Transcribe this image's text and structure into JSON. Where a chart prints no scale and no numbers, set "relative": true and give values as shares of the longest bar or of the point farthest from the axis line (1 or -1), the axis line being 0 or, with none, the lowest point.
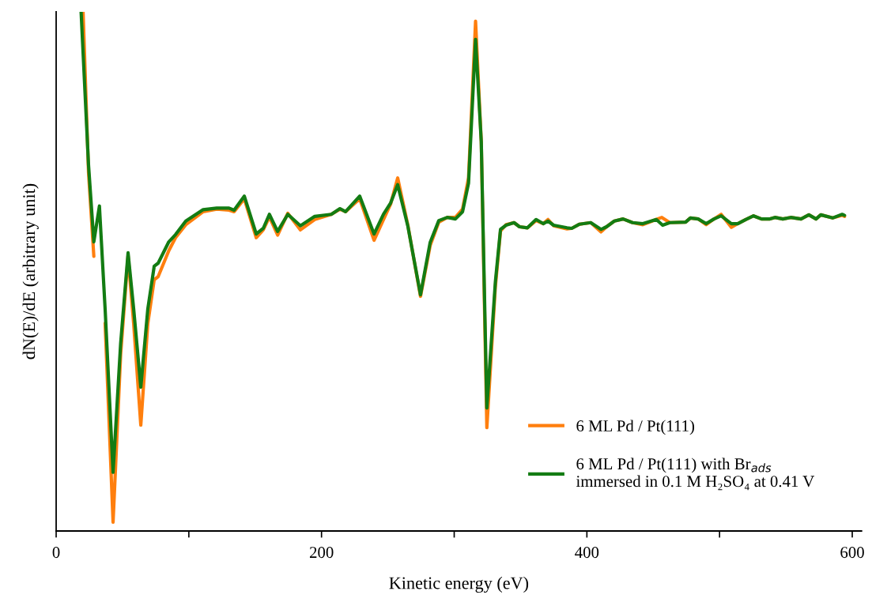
{
  "chart_data": {
    "type": "line",
    "relative": true,
    "xlabel": "Kinetic energy (eV)",
    "ylabel": "dN(E)/dE (arbitrary unit)",
    "xlim": [
      0,
      607
    ],
    "xticks": [
      0,
      {
        "value": 100,
        "label": null
      },
      200,
      {
        "value": 300,
        "label": null
      },
      400,
      {
        "value": 500,
        "label": null
      },
      600
    ],
    "legend": "bottom right",
    "grid": false,
    "line_style": "solid",
    "marker": "none",
    "series": [
      {
        "name": "6 ML Pd / Pt(111)",
        "color": "#ff7f0e",
        "x": [
          20.3,
          24.4,
          28.4,
          32.6,
          36.9,
          42.9,
          48.6,
          54.2,
          58.4,
          63.8,
          69.1,
          73.9,
          76.9,
          84.9,
          90.0,
          97.7,
          110.8,
          121.0,
          130.3,
          134.1,
          141.8,
          150.8,
          156.1,
          160.7,
          166.9,
          174.6,
          184.1,
          194.9,
          207.4,
          213.9,
          218.1,
          228.8,
          239.6,
          246.7,
          252.1,
          257.4,
          265.0,
          274.6,
          281.9,
          288.4,
          294.8,
          300.9,
          306.3,
          310.8,
          316.1,
          320.4,
          324.6,
          331.0,
          334.9,
          339.1,
          345.1,
          349.2,
          355.2,
          361.7,
          367.1,
          370.7,
          374.9,
          385.0,
          388.6,
          394.5,
          402.9,
          410.6,
          414.8,
          420.7,
          427.3,
          434.4,
          442.2,
          452.3,
          456.5,
          462.5,
          474.4,
          478.0,
          483.9,
          489.9,
          495.8,
          501.2,
          508.9,
          513.7,
          519.7,
          525.6,
          531.6,
          537.5,
          541.7,
          547.7,
          553.6,
          561.4,
          567.3,
          572.7,
          576.3,
          585.2,
          592.4,
          594.2
        ],
        "values": [
          1.0,
          0.69,
          0.529,
          null,
          0.4,
          0.017,
          0.34,
          0.53,
          0.4,
          0.204,
          0.4,
          0.484,
          0.49,
          0.54,
          0.565,
          0.59,
          0.615,
          0.62,
          0.618,
          0.615,
          0.64,
          0.565,
          0.58,
          0.605,
          0.57,
          0.612,
          0.58,
          0.6,
          0.61,
          0.62,
          0.615,
          0.64,
          0.56,
          0.6,
          0.63,
          0.68,
          0.59,
          0.452,
          0.55,
          0.595,
          0.604,
          0.604,
          0.62,
          0.68,
          0.982,
          0.75,
          0.199,
          0.47,
          0.578,
          0.59,
          0.594,
          0.586,
          0.584,
          0.598,
          0.592,
          0.6,
          0.588,
          0.582,
          0.583,
          0.591,
          0.594,
          0.576,
          0.586,
          0.597,
          0.601,
          0.594,
          0.59,
          0.6,
          0.604,
          0.594,
          0.595,
          0.603,
          0.601,
          0.59,
          0.601,
          0.61,
          0.585,
          0.592,
          0.6,
          0.607,
          0.601,
          0.601,
          0.604,
          0.601,
          0.604,
          0.601,
          0.609,
          0.601,
          0.609,
          0.603,
          0.608,
          0.606
        ]
      },
      {
        "name": "6 ML Pd / Pt(111) with Br$_{ads}$\nimmersed in 0.1 M H₂SO₄ at 0.41 V",
        "color": "#137c13",
        "x": [
          18.8,
          24.4,
          28.4,
          32.6,
          36.9,
          42.9,
          48.6,
          54.2,
          58.4,
          63.8,
          69.1,
          73.9,
          76.9,
          84.9,
          90.0,
          97.7,
          110.8,
          121.0,
          130.3,
          134.1,
          141.8,
          150.8,
          156.1,
          160.7,
          166.9,
          174.6,
          184.1,
          194.9,
          207.4,
          213.9,
          218.1,
          228.8,
          239.6,
          246.7,
          252.1,
          257.4,
          265.0,
          274.6,
          281.9,
          288.4,
          294.8,
          300.9,
          306.3,
          310.8,
          316.1,
          320.4,
          324.6,
          331.0,
          334.9,
          339.1,
          345.1,
          349.2,
          355.2,
          361.7,
          367.1,
          370.7,
          374.9,
          385.0,
          388.6,
          394.5,
          402.9,
          410.6,
          414.8,
          420.7,
          427.3,
          434.4,
          442.2,
          452.3,
          457.1,
          462.5,
          474.4,
          478.0,
          483.9,
          489.9,
          495.8,
          501.2,
          508.9,
          513.7,
          519.7,
          525.6,
          531.6,
          537.5,
          541.7,
          547.7,
          553.6,
          561.4,
          567.3,
          572.7,
          576.3,
          585.2,
          592.4,
          594.2
        ],
        "values": [
          1.0,
          0.705,
          0.557,
          0.626,
          0.428,
          0.113,
          0.361,
          0.536,
          0.428,
          0.277,
          0.428,
          0.51,
          0.516,
          0.557,
          0.571,
          0.597,
          0.619,
          0.622,
          0.622,
          0.618,
          0.645,
          0.572,
          0.583,
          0.61,
          0.577,
          0.61,
          0.588,
          0.606,
          0.61,
          0.621,
          0.615,
          0.645,
          0.572,
          0.61,
          0.632,
          0.667,
          0.588,
          0.455,
          0.556,
          0.598,
          0.604,
          0.601,
          0.615,
          0.67,
          0.947,
          0.75,
          0.237,
          0.479,
          0.581,
          0.589,
          0.594,
          0.586,
          0.584,
          0.6,
          0.592,
          0.597,
          0.589,
          0.584,
          0.583,
          0.591,
          0.594,
          0.581,
          0.586,
          0.597,
          0.601,
          0.594,
          0.592,
          0.6,
          0.589,
          0.594,
          0.595,
          0.603,
          0.601,
          0.592,
          0.601,
          0.607,
          0.592,
          0.592,
          0.6,
          0.607,
          0.601,
          0.601,
          0.604,
          0.601,
          0.604,
          0.601,
          0.609,
          0.601,
          0.609,
          0.603,
          0.61,
          0.608
        ]
      }
    ]
  }
}
